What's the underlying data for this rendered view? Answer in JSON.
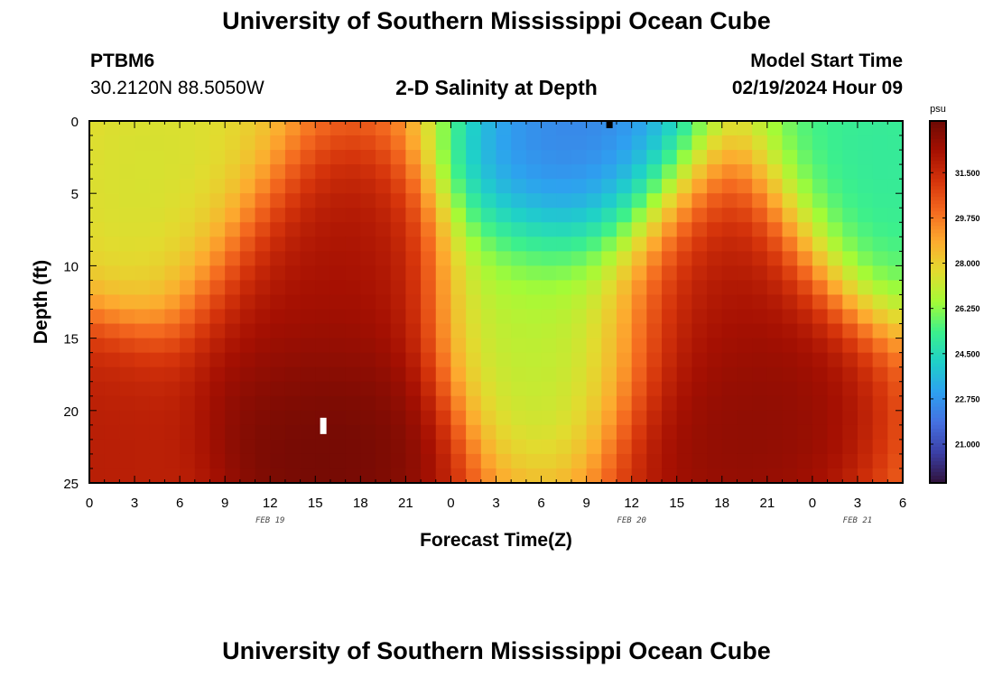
{
  "page": {
    "title_top": "University of Southern Mississippi Ocean Cube",
    "title_bottom": "University of Southern Mississippi Ocean Cube",
    "station_id": "PTBM6",
    "station_coords": "30.2120N  88.5050W",
    "plot_title": "2-D Salinity at Depth",
    "model_start_label": "Model Start Time",
    "model_start_value": "02/19/2024 Hour 09"
  },
  "colors": {
    "ramp": [
      "#30123b",
      "#3b3fa6",
      "#4570e0",
      "#2ea0f0",
      "#1fd0c9",
      "#3cf08c",
      "#a4fb36",
      "#e2db2f",
      "#fdab2f",
      "#f4691f",
      "#d5340b",
      "#a51002",
      "#6d0a04"
    ],
    "frame": "#000000"
  },
  "chart_data": {
    "type": "heatmap",
    "title": "2-D Salinity at Depth",
    "xlabel": "Forecast Time(Z)",
    "ylabel": "Depth (ft)",
    "x_ticks": [
      "0",
      "3",
      "6",
      "9",
      "12",
      "15",
      "18",
      "21",
      "0",
      "3",
      "6",
      "9",
      "12",
      "15",
      "18",
      "21",
      "0",
      "3",
      "6"
    ],
    "x_tick_hours": [
      0,
      3,
      6,
      9,
      12,
      15,
      18,
      21,
      24,
      27,
      30,
      33,
      36,
      39,
      42,
      45,
      48,
      51,
      54
    ],
    "xlim_hours": [
      0,
      54
    ],
    "date_labels": [
      {
        "text": "FEB 19",
        "hour": 12
      },
      {
        "text": "FEB 20",
        "hour": 36
      },
      {
        "text": "FEB 21",
        "hour": 51
      }
    ],
    "y_ticks": [
      "0",
      "5",
      "10",
      "15",
      "20",
      "25"
    ],
    "y_tick_values": [
      0,
      5,
      10,
      15,
      20,
      25
    ],
    "ylim_ft": [
      0,
      25
    ],
    "colorbar": {
      "unit": "psu",
      "min": 19.5,
      "max": 33.5,
      "ticks": [
        "31.500",
        "29.750",
        "28.000",
        "26.250",
        "24.500",
        "22.750",
        "21.000"
      ],
      "tick_values": [
        31.5,
        29.75,
        28.0,
        26.25,
        24.5,
        22.75,
        21.0
      ]
    },
    "grid": {
      "columns": 54,
      "rows": 25
    },
    "salinity_field_psu": {
      "description": "salinity by hour and depth, smooth interpolation between these features",
      "background_psu": 29.6,
      "features": [
        {
          "name": "left surface fresh lens",
          "hour": 5,
          "depth_ft": 4,
          "value": 27.3
        },
        {
          "name": "left bottom saline",
          "hour": 0,
          "depth_ft": 24,
          "value": 32.0
        },
        {
          "name": "first saline core",
          "hour": 15.5,
          "depth_ft": 21.5,
          "value": 33.6
        },
        {
          "name": "first saline column",
          "hour": 15,
          "depth_ft": 12,
          "value": 32.4
        },
        {
          "name": "midday fresh plume",
          "hour": 33,
          "depth_ft": 3,
          "value": 21.8
        },
        {
          "name": "midday fresh trough",
          "hour": 31,
          "depth_ft": 14,
          "value": 26.8
        },
        {
          "name": "second saline core",
          "hour": 43,
          "depth_ft": 20,
          "value": 33.0
        },
        {
          "name": "second saline column",
          "hour": 41,
          "depth_ft": 11,
          "value": 32.3
        },
        {
          "name": "right surface fresh lens",
          "hour": 52,
          "depth_ft": 3,
          "value": 24.8
        }
      ]
    }
  }
}
